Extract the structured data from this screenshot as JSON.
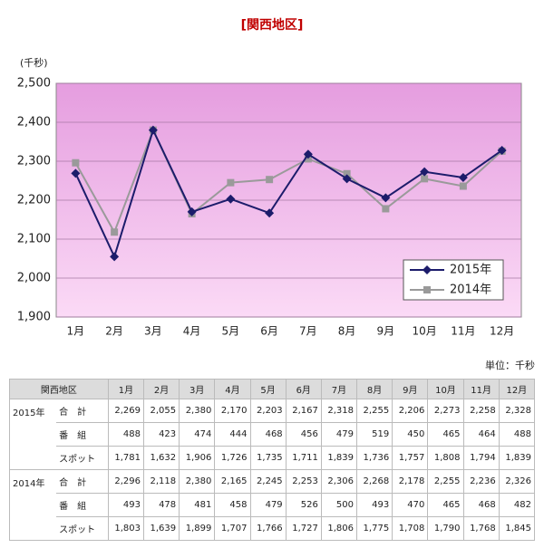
{
  "chart_data": {
    "type": "line",
    "title": "[関西地区]",
    "y_unit": "(千秒)",
    "categories": [
      "1月",
      "2月",
      "3月",
      "4月",
      "5月",
      "6月",
      "7月",
      "8月",
      "9月",
      "10月",
      "11月",
      "12月"
    ],
    "series": [
      {
        "name": "2015年",
        "color": "#1c1c6b",
        "marker": "diamond",
        "values": [
          2269,
          2055,
          2380,
          2170,
          2203,
          2167,
          2318,
          2255,
          2206,
          2273,
          2258,
          2328
        ]
      },
      {
        "name": "2014年",
        "color": "#9a9a9a",
        "marker": "square",
        "values": [
          2296,
          2118,
          2380,
          2165,
          2245,
          2253,
          2306,
          2268,
          2178,
          2255,
          2236,
          2326
        ]
      }
    ],
    "ylim": [
      1900,
      2500
    ],
    "yticks": [
      {
        "value": 1900,
        "label": "1,900"
      },
      {
        "value": 2000,
        "label": "2,000"
      },
      {
        "value": 2100,
        "label": "2,100"
      },
      {
        "value": 2200,
        "label": "2,200"
      },
      {
        "value": 2300,
        "label": "2,300"
      },
      {
        "value": 2400,
        "label": "2,400"
      },
      {
        "value": 2500,
        "label": "2,500"
      }
    ],
    "grid": true,
    "legend": "lower right"
  },
  "table": {
    "unit": "単位：千秒",
    "header": [
      "関西地区",
      "1月",
      "2月",
      "3月",
      "4月",
      "5月",
      "6月",
      "7月",
      "8月",
      "9月",
      "10月",
      "11月",
      "12月"
    ],
    "groups": [
      {
        "year": "2015年",
        "rows": [
          {
            "label": "合　計",
            "values": [
              "2,269",
              "2,055",
              "2,380",
              "2,170",
              "2,203",
              "2,167",
              "2,318",
              "2,255",
              "2,206",
              "2,273",
              "2,258",
              "2,328"
            ]
          },
          {
            "label": "番　組",
            "values": [
              "488",
              "423",
              "474",
              "444",
              "468",
              "456",
              "479",
              "519",
              "450",
              "465",
              "464",
              "488"
            ]
          },
          {
            "label": "スポット",
            "values": [
              "1,781",
              "1,632",
              "1,906",
              "1,726",
              "1,735",
              "1,711",
              "1,839",
              "1,736",
              "1,757",
              "1,808",
              "1,794",
              "1,839"
            ]
          }
        ]
      },
      {
        "year": "2014年",
        "rows": [
          {
            "label": "合　計",
            "values": [
              "2,296",
              "2,118",
              "2,380",
              "2,165",
              "2,245",
              "2,253",
              "2,306",
              "2,268",
              "2,178",
              "2,255",
              "2,236",
              "2,326"
            ]
          },
          {
            "label": "番　組",
            "values": [
              "493",
              "478",
              "481",
              "458",
              "479",
              "526",
              "500",
              "493",
              "470",
              "465",
              "468",
              "482"
            ]
          },
          {
            "label": "スポット",
            "values": [
              "1,803",
              "1,639",
              "1,899",
              "1,707",
              "1,766",
              "1,727",
              "1,806",
              "1,775",
              "1,708",
              "1,790",
              "1,768",
              "1,845"
            ]
          }
        ]
      }
    ]
  }
}
